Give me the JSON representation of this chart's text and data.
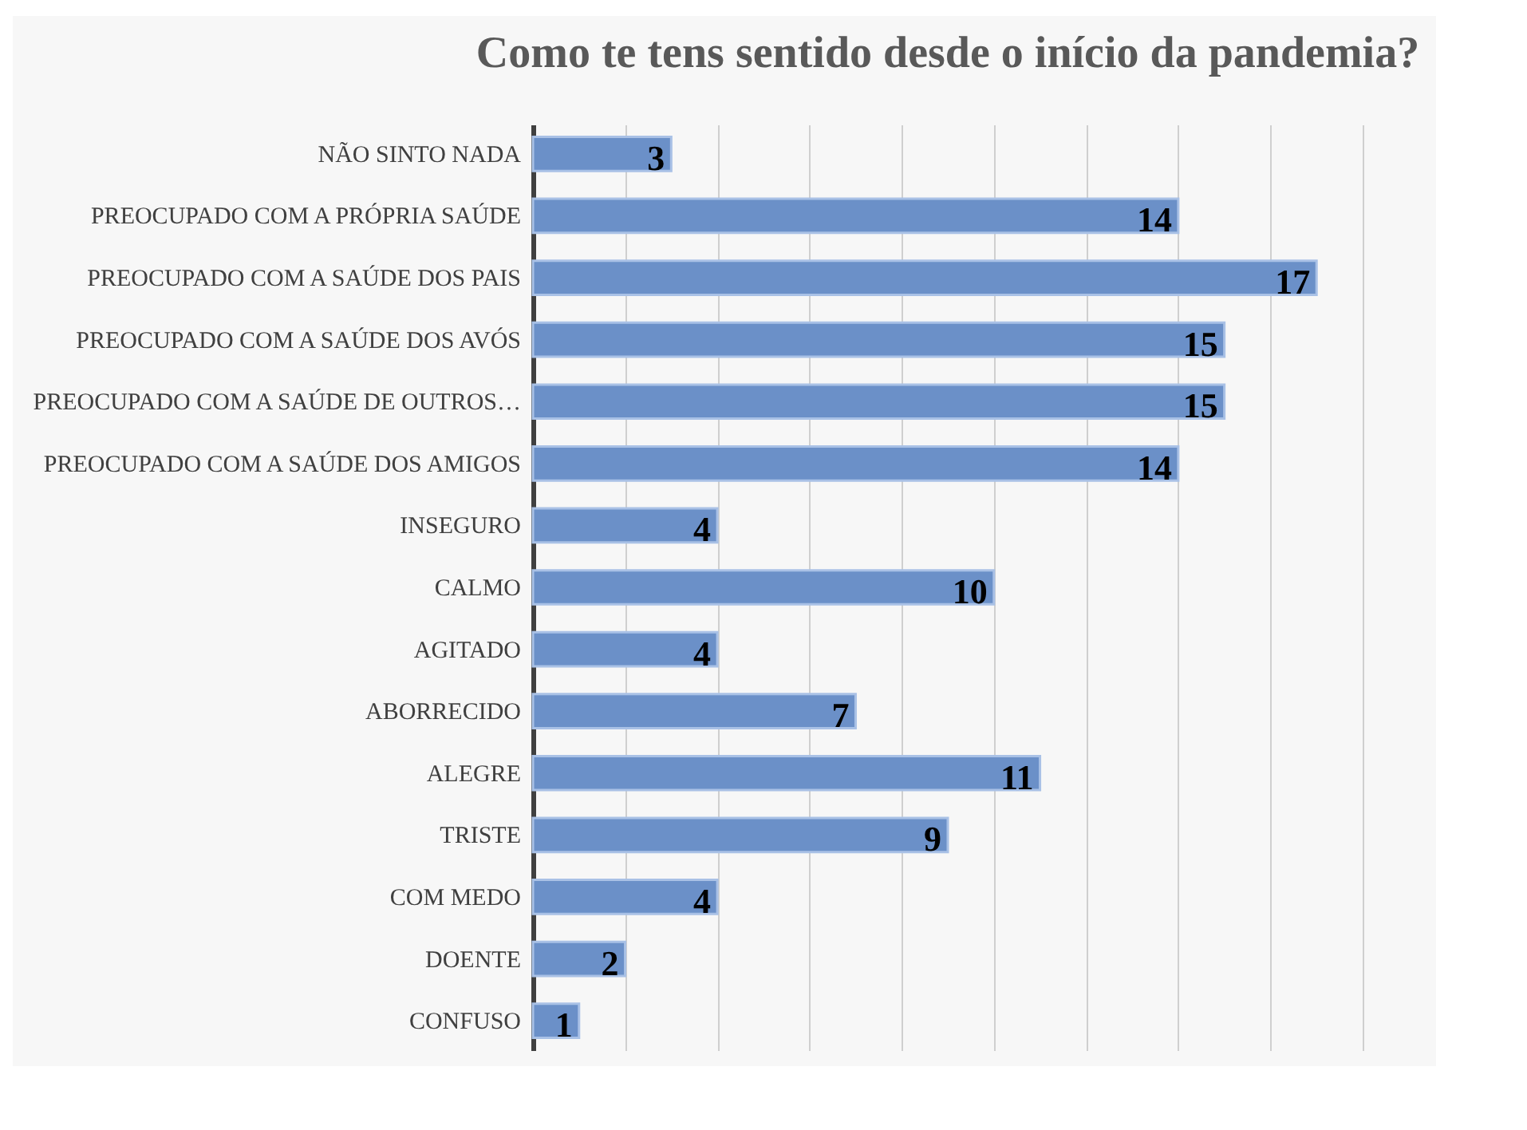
{
  "chart_data": {
    "type": "bar",
    "orientation": "horizontal",
    "title": "Como te tens sentido desde o início da pandemia?",
    "categories": [
      "NÃO SINTO NADA",
      "PREOCUPADO COM A PRÓPRIA SAÚDE",
      "PREOCUPADO COM A SAÚDE DOS PAIS",
      "PREOCUPADO COM A SAÚDE DOS AVÓS",
      "PREOCUPADO COM A SAÚDE DE OUTROS…",
      "PREOCUPADO COM A SAÚDE DOS AMIGOS",
      "INSEGURO",
      "CALMO",
      "AGITADO",
      "ABORRECIDO",
      "ALEGRE",
      "TRISTE",
      "COM MEDO",
      "DOENTE",
      "CONFUSO"
    ],
    "series": [
      {
        "color": "#6b90c8",
        "values": [
          3,
          14,
          17,
          15,
          15,
          14,
          4,
          10,
          4,
          7,
          11,
          9,
          4,
          2,
          1
        ]
      }
    ],
    "xlim": [
      0,
      18
    ],
    "xticks": [
      {
        "value": 0,
        "label": null
      },
      {
        "value": 2,
        "label": null
      },
      {
        "value": 4,
        "label": null
      },
      {
        "value": 6,
        "label": null
      },
      {
        "value": 8,
        "label": null
      },
      {
        "value": 10,
        "label": null
      },
      {
        "value": 12,
        "label": null
      },
      {
        "value": 14,
        "label": null
      },
      {
        "value": 16,
        "label": null
      },
      {
        "value": 18,
        "label": null
      }
    ],
    "grid": "x",
    "tick_labels": "y",
    "data_labels": true,
    "legend": false
  }
}
